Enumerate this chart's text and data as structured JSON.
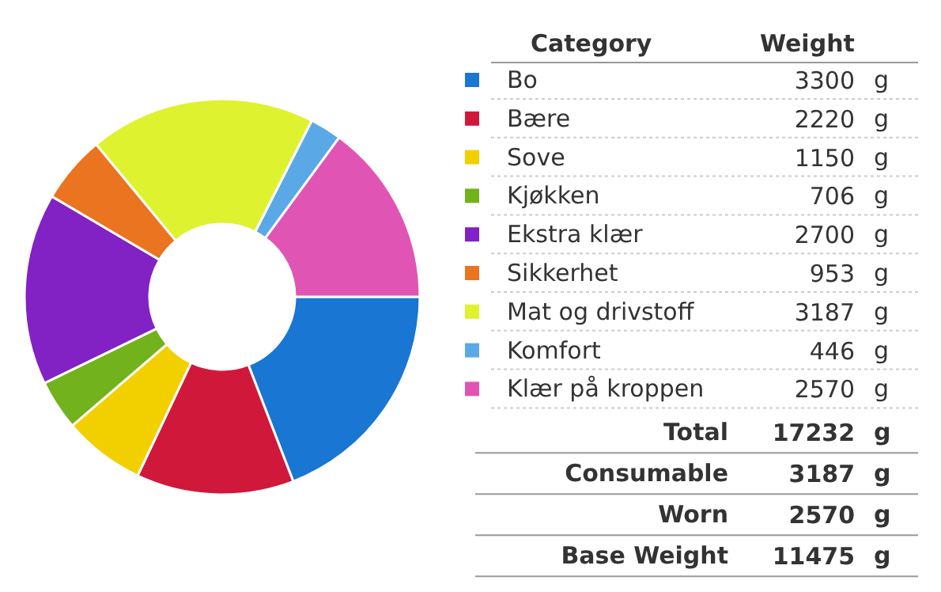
{
  "chart_data": {
    "type": "donut",
    "legend": "right",
    "legend_title": "Category",
    "data_labels": true,
    "categories": [
      "Bo",
      "Bære",
      "Sove",
      "Kjøkken",
      "Ekstra klær",
      "Sikkerhet",
      "Mat og drivstoff",
      "Komfort",
      "Klær på kroppen"
    ],
    "values": [
      3300,
      2220,
      1150,
      706,
      2700,
      953,
      3187,
      446,
      2570
    ],
    "colors": [
      "#1976d2",
      "#d0183a",
      "#f2d000",
      "#72b21c",
      "#8221c4",
      "#eb7420",
      "#dff230",
      "#5aa9e6",
      "#e055b4"
    ],
    "annotations": [
      "Weight",
      "g",
      "Total",
      "17232",
      "Consumable",
      "3187",
      "Worn",
      "2570",
      "Base Weight",
      "11475"
    ]
  }
}
